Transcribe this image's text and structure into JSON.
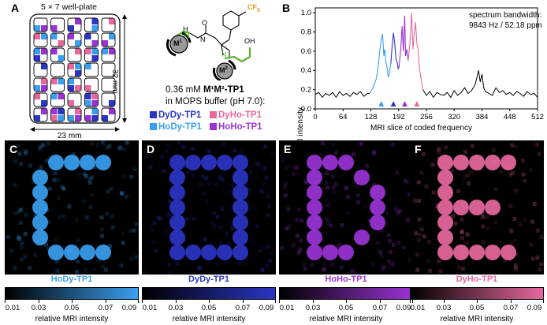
{
  "panel_labels": {
    "a": "A",
    "b": "B",
    "c": "C",
    "d": "D",
    "e": "E",
    "f": "F"
  },
  "well_plate": {
    "title": "5 × 7 well-plate",
    "height_label": "32 mm",
    "width_label": "23 mm"
  },
  "molecule": {
    "cf3": "CF",
    "cf3_sub": "3",
    "m1": "M",
    "m1_sup": "1",
    "m2": "M",
    "m2_sup": "2",
    "nh": "H",
    "n1": "N",
    "n2": "N",
    "n3": "N",
    "oh": "OH",
    "o": "O"
  },
  "conditions": {
    "line1_prefix": "0.36 mM ",
    "line1_compound": "M¹M²-TP1",
    "line2": "in MOPS buffer (pH 7.0):"
  },
  "legend": [
    {
      "label": "DyDy-TP1",
      "color": "#2b35c4"
    },
    {
      "label": "DyHo-TP1",
      "color": "#e8689e"
    },
    {
      "label": "HoDy-TP1",
      "color": "#3a9ff0"
    },
    {
      "label": "HoHo-TP1",
      "color": "#9a33d6"
    }
  ],
  "colors": {
    "hody": "#3a9ff0",
    "dydy": "#2b35c4",
    "hoho": "#9a33d6",
    "dyho": "#e8689e",
    "base": "#000000"
  },
  "chart_data": {
    "type": "line",
    "ylabel": "relative MRI intensity",
    "xlabel": "MRI slice of coded frequency",
    "annotation_line1": "spectrum bandwidth:",
    "annotation_line2": "9843 Hz / 52.18 ppm",
    "xlim": [
      0,
      512
    ],
    "ylim": [
      0,
      1.05
    ],
    "xticks": [
      0,
      64,
      128,
      192,
      256,
      320,
      384,
      448,
      512
    ],
    "yticks": [
      0,
      0.2,
      0.4,
      0.6,
      0.8,
      1
    ],
    "ytick_labels": [
      "0.0",
      "0.2",
      "0.4",
      "0.6",
      "0.8",
      "1.0"
    ],
    "series": [
      {
        "segment": "hody",
        "color": "#3a9ff0",
        "x": [
          125,
          133,
          141,
          145,
          149,
          152,
          155,
          158,
          160,
          163,
          166,
          168,
          171,
          174
        ],
        "y": [
          0.16,
          0.22,
          0.32,
          0.45,
          0.62,
          0.72,
          0.78,
          0.55,
          0.62,
          0.48,
          0.42,
          0.33,
          0.38,
          0.47
        ]
      },
      {
        "segment": "dydy",
        "color": "#2b35c4",
        "x": [
          174,
          177,
          180,
          183,
          186,
          189,
          191,
          193
        ],
        "y": [
          0.47,
          0.65,
          0.79,
          0.68,
          0.52,
          0.48,
          0.42,
          0.44
        ]
      },
      {
        "segment": "hoho",
        "color": "#9a33d6",
        "x": [
          193,
          197,
          200,
          203,
          206,
          208,
          211,
          214
        ],
        "y": [
          0.44,
          0.62,
          0.86,
          0.6,
          0.97,
          0.55,
          0.62,
          0.5
        ]
      },
      {
        "segment": "dyho",
        "color": "#e8689e",
        "x": [
          214,
          218,
          222,
          225,
          228,
          231,
          234,
          237,
          240,
          244,
          248
        ],
        "y": [
          0.5,
          0.68,
          1.0,
          0.62,
          0.78,
          0.9,
          0.68,
          0.62,
          0.42,
          0.3,
          0.2
        ]
      },
      {
        "segment": "baseline",
        "color": "#000000",
        "x": [
          0,
          8,
          16,
          24,
          32,
          40,
          48,
          56,
          64,
          72,
          80,
          88,
          96,
          104,
          112,
          120,
          125,
          248,
          256,
          264,
          272,
          280,
          288,
          296,
          304,
          312,
          320,
          328,
          336,
          344,
          352,
          360,
          368,
          372,
          376,
          380,
          384,
          388,
          392,
          400,
          408,
          416,
          424,
          432,
          440,
          448,
          456,
          464,
          472,
          480,
          488,
          496,
          504,
          512
        ],
        "y": [
          0.15,
          0.17,
          0.12,
          0.16,
          0.14,
          0.17,
          0.12,
          0.18,
          0.14,
          0.16,
          0.13,
          0.17,
          0.15,
          0.18,
          0.13,
          0.16,
          0.16,
          0.2,
          0.14,
          0.18,
          0.12,
          0.17,
          0.15,
          0.14,
          0.17,
          0.12,
          0.19,
          0.14,
          0.17,
          0.22,
          0.16,
          0.19,
          0.25,
          0.32,
          0.4,
          0.28,
          0.36,
          0.22,
          0.18,
          0.16,
          0.14,
          0.22,
          0.17,
          0.19,
          0.15,
          0.17,
          0.14,
          0.18,
          0.16,
          0.13,
          0.18,
          0.15,
          0.16,
          0.12
        ]
      }
    ],
    "markers": [
      {
        "x": 152,
        "color": "#3a9ff0"
      },
      {
        "x": 180,
        "color": "#2b35c4"
      },
      {
        "x": 206,
        "color": "#9a33d6"
      },
      {
        "x": 234,
        "color": "#e8689e"
      }
    ]
  },
  "images": [
    {
      "name": "HoDy-TP1",
      "color": "#3a9ff0",
      "letter": "C"
    },
    {
      "name": "DyDy-TP1",
      "color": "#2b35c4",
      "letter": "O"
    },
    {
      "name": "HoHo-TP1",
      "color": "#9a33d6",
      "letter": "D"
    },
    {
      "name": "DyHo-TP1",
      "color": "#e8689e",
      "letter": "E"
    }
  ],
  "colorbar": {
    "ticks": [
      "0.01",
      "0.03",
      "0.05",
      "0.07",
      "0.09"
    ],
    "label": "relative MRI intensity"
  }
}
